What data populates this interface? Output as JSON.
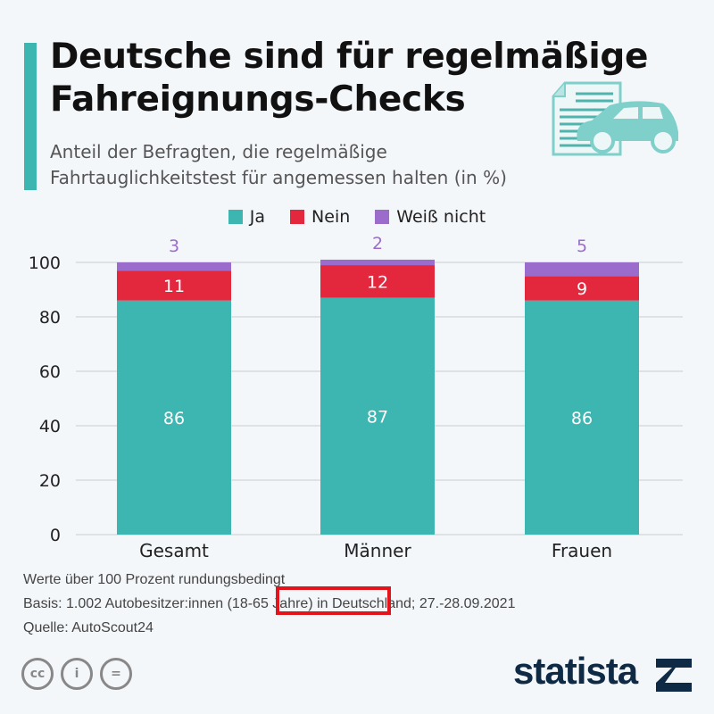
{
  "header": {
    "title_line1": "Deutsche sind für regelmäßige",
    "title_line2": "Fahreignungs-Checks",
    "subtitle_line1": "Anteil der Befragten, die regelmäßige",
    "subtitle_line2": "Fahrtauglichkeitstest für angemessen halten (in %)",
    "icon": "document-car-icon"
  },
  "chart_data": {
    "type": "bar",
    "stacked": true,
    "categories": [
      "Gesamt",
      "Männer",
      "Frauen"
    ],
    "series": [
      {
        "name": "Ja",
        "color": "#3db5b0",
        "values": [
          86,
          87,
          86
        ]
      },
      {
        "name": "Nein",
        "color": "#e3283e",
        "values": [
          11,
          12,
          9
        ]
      },
      {
        "name": "Weiß nicht",
        "color": "#9b6ccc",
        "values": [
          3,
          2,
          5
        ]
      }
    ],
    "ylim": [
      0,
      100
    ],
    "yticks": [
      0,
      20,
      40,
      60,
      80,
      100
    ],
    "grid": true,
    "legend": "top"
  },
  "footer": {
    "note1": "Werte über 100 Prozent rundungsbedingt",
    "note2": "Basis: 1.002 Autobesitzer:innen (18-65 Jahre) in Deutschland; 27.-28.09.2021",
    "note3": "Quelle: AutoScout24",
    "license_icons": [
      "cc-icon",
      "by-icon",
      "nd-icon"
    ],
    "logo": "statista"
  }
}
